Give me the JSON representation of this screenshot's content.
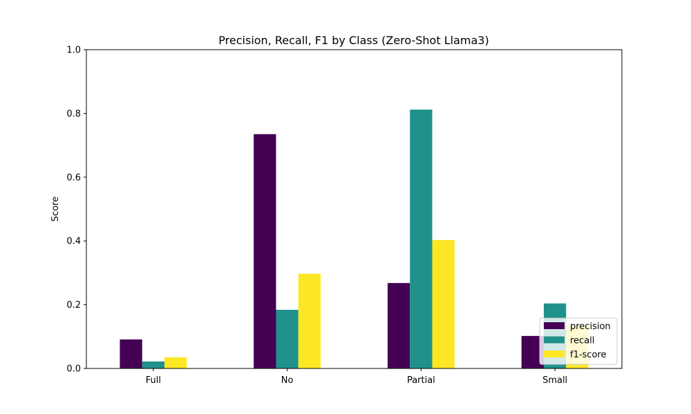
{
  "chart_data": {
    "type": "bar",
    "title": "Precision, Recall, F1 by Class (Zero-Shot Llama3)",
    "xlabel": "",
    "ylabel": "Score",
    "categories": [
      "Full",
      "No",
      "Partial",
      "Small"
    ],
    "series": [
      {
        "name": "precision",
        "color": "#440154",
        "values": [
          0.091,
          0.735,
          0.268,
          0.102
        ]
      },
      {
        "name": "recall",
        "color": "#21918c",
        "values": [
          0.022,
          0.184,
          0.812,
          0.204
        ]
      },
      {
        "name": "f1-score",
        "color": "#fde725",
        "values": [
          0.035,
          0.297,
          0.403,
          0.136
        ]
      }
    ],
    "ylim": [
      0,
      1.0
    ],
    "yticks": [
      "0.0",
      "0.2",
      "0.4",
      "0.6",
      "0.8",
      "1.0"
    ],
    "grid": false,
    "legend_position": "lower right"
  }
}
